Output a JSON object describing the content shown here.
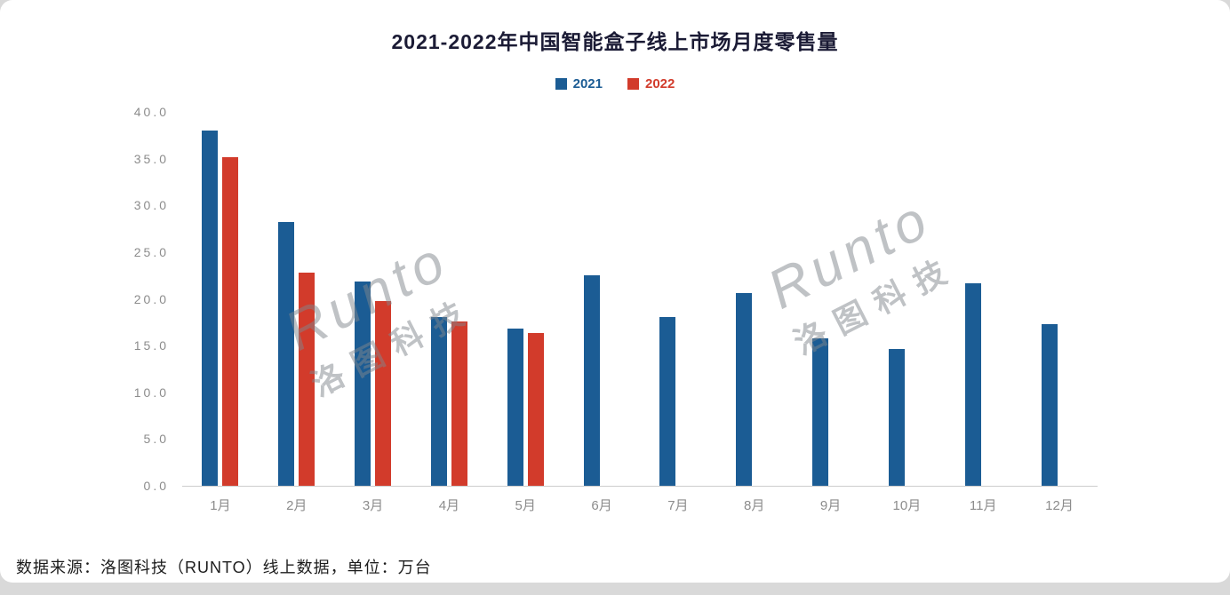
{
  "page": {
    "source_note": "数据来源：洛图科技（RUNTO）线上数据，单位：万台"
  },
  "watermark": {
    "line1": "Runto",
    "line2": "洛图科技"
  },
  "chart_data": {
    "type": "bar",
    "title": "2021-2022年中国智能盒子线上市场月度零售量",
    "categories": [
      "1月",
      "2月",
      "3月",
      "4月",
      "5月",
      "6月",
      "7月",
      "8月",
      "9月",
      "10月",
      "11月",
      "12月"
    ],
    "series": [
      {
        "name": "2021",
        "color": "#1b5c94",
        "values": [
          38.0,
          28.2,
          21.9,
          18.1,
          16.8,
          22.5,
          18.1,
          20.6,
          15.8,
          14.6,
          21.7,
          17.3
        ]
      },
      {
        "name": "2022",
        "color": "#d23b2b",
        "values": [
          35.2,
          22.8,
          19.8,
          17.6,
          16.3,
          null,
          null,
          null,
          null,
          null,
          null,
          null
        ]
      }
    ],
    "ylabel": "万台",
    "ylim": [
      0,
      40
    ],
    "ytick_step": 5,
    "yticks": [
      "40.0",
      "35.0",
      "30.0",
      "25.0",
      "20.0",
      "15.0",
      "10.0",
      "5.0",
      "0.0"
    ],
    "grid": false,
    "legend_position": "top"
  }
}
